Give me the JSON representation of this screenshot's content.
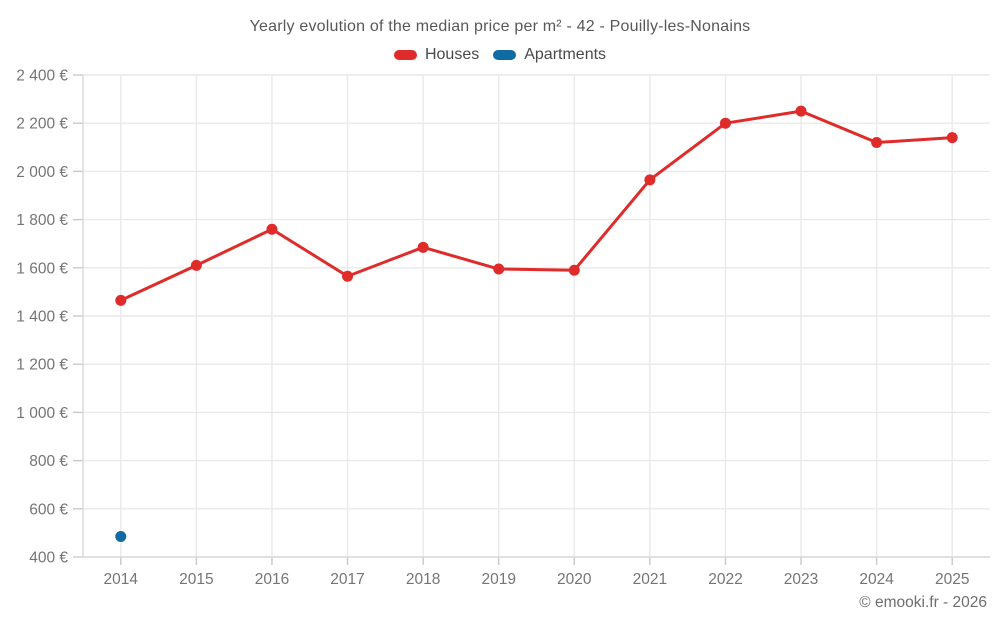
{
  "title": "Yearly evolution of the median price per m² - 42 - Pouilly-les-Nonains",
  "footer": {
    "copyright": "© emooki.fr - 2026"
  },
  "chart_data": {
    "type": "line",
    "title": "Yearly evolution of the median price per m² - 42 - Pouilly-les-Nonains",
    "categories": [
      "2014",
      "2015",
      "2016",
      "2017",
      "2018",
      "2019",
      "2020",
      "2021",
      "2022",
      "2023",
      "2024",
      "2025"
    ],
    "series": [
      {
        "name": "Houses",
        "color": "#e02b2b",
        "values": [
          1465,
          1610,
          1760,
          1565,
          1685,
          1595,
          1590,
          1965,
          2200,
          2250,
          2120,
          2140
        ]
      },
      {
        "name": "Apartments",
        "color": "#106ba3",
        "values": [
          485,
          null,
          null,
          null,
          null,
          null,
          null,
          null,
          null,
          null,
          null,
          null
        ]
      }
    ],
    "ylim": [
      400,
      2400
    ],
    "ytick_step": 200,
    "y_tick_labels": [
      "400 €",
      "600 €",
      "800 €",
      "1 000 €",
      "1 200 €",
      "1 400 €",
      "1 600 €",
      "1 800 €",
      "2 000 €",
      "2 200 €",
      "2 400 €"
    ],
    "unit": "€",
    "grid": true,
    "legend_position": "top"
  }
}
